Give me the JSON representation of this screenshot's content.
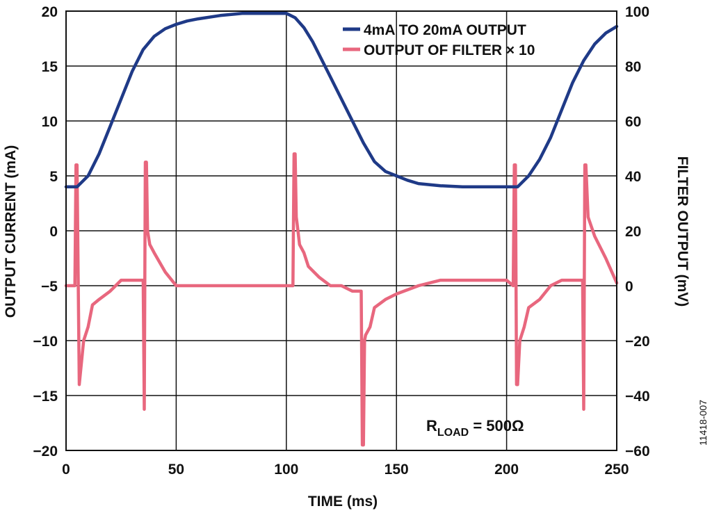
{
  "chart_data": {
    "type": "line",
    "xlabel": "TIME (ms)",
    "ylabel_left": "OUTPUT CURRENT (mA)",
    "ylabel_right": "FILTER OUTPUT (mV)",
    "xlim": [
      0,
      250
    ],
    "ylim_left": [
      -20,
      20
    ],
    "ylim_right": [
      -60,
      100
    ],
    "x_ticks": [
      "0",
      "50",
      "100",
      "150",
      "200",
      "250"
    ],
    "y_ticks_left": [
      "20",
      "15",
      "10",
      "5",
      "0",
      "−5",
      "−10",
      "−15",
      "−20"
    ],
    "y_ticks_right": [
      "100",
      "80",
      "60",
      "40",
      "20",
      "0",
      "−20",
      "−40",
      "−60"
    ],
    "grid": true,
    "legend_position": "top-right",
    "annotation": {
      "main": "R",
      "sub": "LOAD",
      "rest": " = 500Ω"
    },
    "figure_id": "11418-007",
    "series": [
      {
        "name": "4mA TO 20mA OUTPUT",
        "axis": "left",
        "color": "#1f3a87",
        "x": [
          0,
          5,
          10,
          15,
          20,
          25,
          30,
          35,
          40,
          45,
          50,
          55,
          60,
          70,
          80,
          90,
          100,
          104,
          108,
          112,
          116,
          120,
          125,
          130,
          135,
          140,
          145,
          150,
          155,
          160,
          170,
          180,
          190,
          200,
          205,
          210,
          215,
          220,
          225,
          230,
          235,
          240,
          245,
          250
        ],
        "y": [
          4,
          4,
          5,
          7,
          9.5,
          12,
          14.5,
          16.5,
          17.7,
          18.4,
          18.8,
          19.1,
          19.3,
          19.6,
          19.8,
          19.8,
          19.8,
          19.4,
          18.5,
          17.2,
          15.6,
          14,
          12,
          10,
          8,
          6.3,
          5.4,
          5,
          4.6,
          4.3,
          4.1,
          4,
          4,
          4,
          4,
          5,
          6.5,
          8.5,
          11,
          13.5,
          15.5,
          17,
          18,
          18.6
        ]
      },
      {
        "name": "OUTPUT OF FILTER × 10",
        "axis": "right",
        "color": "#e8677e",
        "x": [
          0,
          3,
          4,
          4.5,
          5,
          6,
          8,
          10,
          12,
          15,
          20,
          25,
          30,
          35,
          35.5,
          36,
          36.5,
          37,
          38,
          40,
          45,
          50,
          55,
          60,
          70,
          80,
          90,
          100,
          103,
          103.5,
          104,
          104.5,
          105,
          106,
          108,
          110,
          115,
          120,
          125,
          130,
          134,
          134.5,
          135,
          135.5,
          136,
          138,
          140,
          145,
          150,
          160,
          170,
          180,
          190,
          200,
          203,
          203.5,
          204,
          204.5,
          205,
          206,
          208,
          210,
          215,
          220,
          225,
          230,
          234,
          234.5,
          235,
          235.5,
          236,
          237,
          240,
          245,
          250
        ],
        "y": [
          0,
          0,
          0,
          44,
          44,
          -36,
          -20,
          -15,
          -7,
          -5,
          -2,
          2,
          2,
          2,
          -45,
          45,
          45,
          20,
          15,
          12,
          5,
          0,
          0,
          0,
          0,
          0,
          0,
          0,
          0,
          48,
          48,
          25,
          22,
          15,
          12,
          7,
          3,
          0,
          0,
          -2,
          -2,
          -58,
          -58,
          -20,
          -18,
          -15,
          -8,
          -5,
          -3,
          0,
          2,
          2,
          2,
          2,
          0,
          44,
          44,
          -36,
          -36,
          -20,
          -15,
          -8,
          -5,
          0,
          2,
          2,
          2,
          2,
          -45,
          44,
          44,
          25,
          18,
          10,
          1
        ]
      }
    ]
  }
}
